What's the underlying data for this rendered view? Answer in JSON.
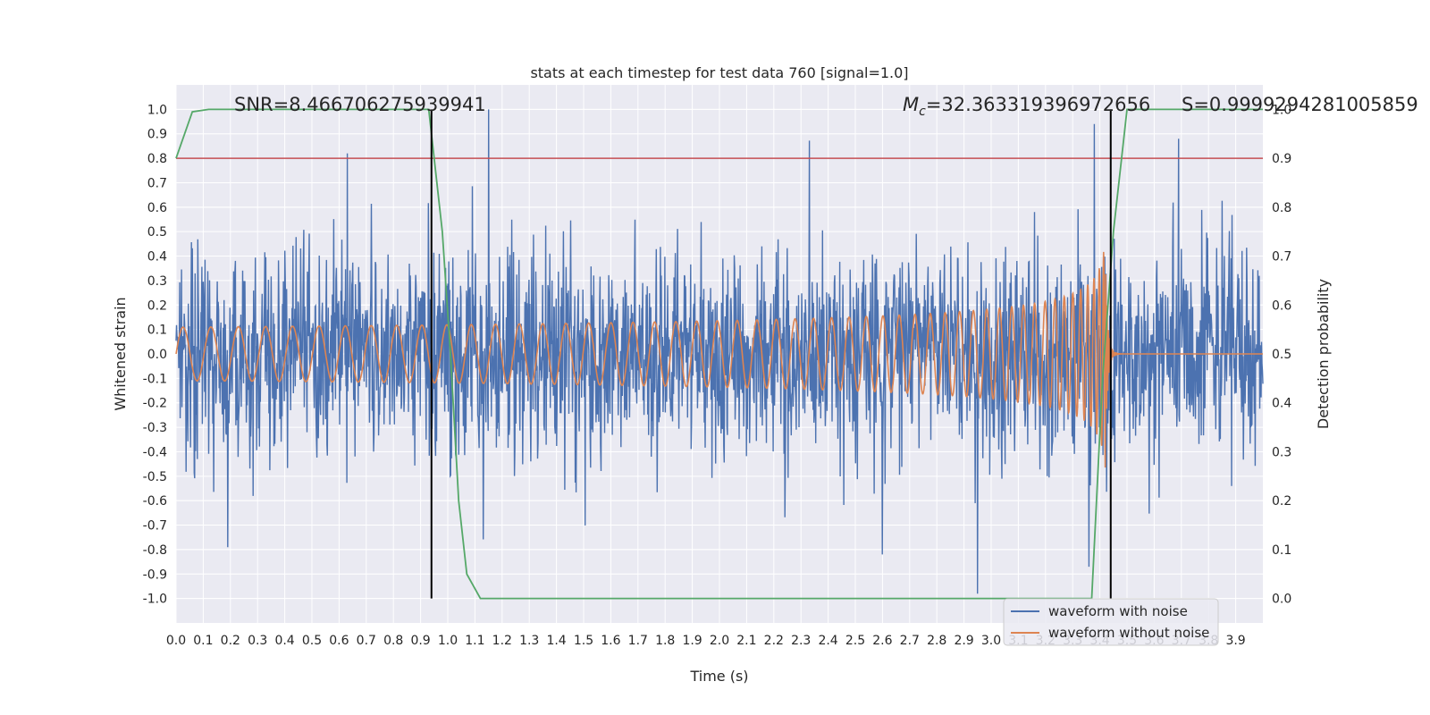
{
  "chart_data": {
    "type": "line",
    "title": "stats at each timestep for test data 760 [signal=1.0]",
    "xlabel": "Time (s)",
    "ylabel": "Whitened strain",
    "y2label": "Detection probability",
    "xlim": [
      0.0,
      4.0
    ],
    "ylim": [
      -1.1,
      1.1
    ],
    "y2lim": [
      -0.05,
      1.05
    ],
    "x_ticks": [
      0.0,
      0.1,
      0.2,
      0.3,
      0.4,
      0.5,
      0.6,
      0.7,
      0.8,
      0.9,
      1.0,
      1.1,
      1.2,
      1.3,
      1.4,
      1.5,
      1.6,
      1.7,
      1.8,
      1.9,
      2.0,
      2.1,
      2.2,
      2.3,
      2.4,
      2.5,
      2.6,
      2.7,
      2.8,
      2.9,
      3.0,
      3.1,
      3.2,
      3.3,
      3.4,
      3.5,
      3.6,
      3.7,
      3.8,
      3.9
    ],
    "y_ticks": [
      -1.0,
      -0.9,
      -0.8,
      -0.7,
      -0.6,
      -0.5,
      -0.4,
      -0.3,
      -0.2,
      -0.1,
      0.0,
      0.1,
      0.2,
      0.3,
      0.4,
      0.5,
      0.6,
      0.7,
      0.8,
      0.9,
      1.0
    ],
    "y2_ticks": [
      0.0,
      0.1,
      0.2,
      0.3,
      0.4,
      0.5,
      0.6,
      0.7,
      0.8,
      0.9,
      1.0
    ],
    "grid": true,
    "legend_position": "lower-right",
    "annotations": {
      "snr": "SNR=8.466706275939941",
      "mc": "M_c=32.363319396972656",
      "mc_prefix": "M",
      "mc_sub": "c",
      "mc_value": "=32.363319396972656",
      "s": "S=0.9999294281005859"
    },
    "threshold": {
      "axis": "y2",
      "value": 0.9,
      "color": "#c44e52"
    },
    "vertical_lines": [
      {
        "x": 0.94,
        "y2_from": 0.0,
        "y2_to": 1.0,
        "color": "#000000"
      },
      {
        "x": 3.44,
        "y2_from": 0.0,
        "y2_to": 1.0,
        "color": "#000000"
      }
    ],
    "series": [
      {
        "name": "waveform with noise",
        "axis": "y",
        "color": "#4c72b0",
        "kind": "noise",
        "x_range": [
          0.0,
          4.0
        ],
        "y_range": [
          -0.98,
          1.0
        ],
        "peaks": [
          {
            "x": 0.63,
            "y": 0.82
          },
          {
            "x": 1.15,
            "y": 1.0
          },
          {
            "x": 3.38,
            "y": 0.94
          },
          {
            "x": 3.69,
            "y": 0.88
          },
          {
            "x": 2.95,
            "y": -0.98
          },
          {
            "x": 0.19,
            "y": -0.79
          },
          {
            "x": 2.6,
            "y": -0.82
          },
          {
            "x": 3.36,
            "y": -0.87
          }
        ]
      },
      {
        "name": "waveform without noise",
        "axis": "y",
        "color": "#dd8452",
        "kind": "chirp",
        "x_range": [
          0.0,
          4.0
        ],
        "merger_x": 3.42,
        "peak_amplitude": 0.47
      },
      {
        "name": "Detection probability",
        "axis": "y2",
        "color": "#55a868",
        "x": [
          0.0,
          0.06,
          0.12,
          0.5,
          0.93,
          0.98,
          1.01,
          1.04,
          1.07,
          1.12,
          1.2,
          3.0,
          3.37,
          3.41,
          3.45,
          3.5,
          3.6,
          4.0
        ],
        "y": [
          0.9,
          0.995,
          1.0,
          1.0,
          1.0,
          0.75,
          0.5,
          0.2,
          0.05,
          0.0,
          0.0,
          0.0,
          0.0,
          0.45,
          0.75,
          1.0,
          1.0,
          1.0
        ]
      }
    ]
  }
}
